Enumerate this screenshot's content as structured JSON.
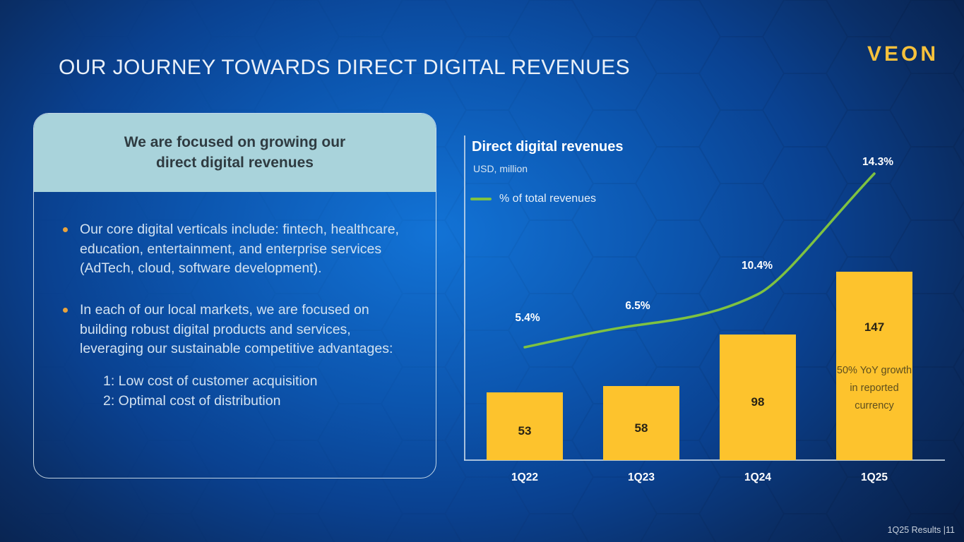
{
  "slide": {
    "title": "OUR JOURNEY TOWARDS DIRECT DIGITAL REVENUES",
    "logo_text": "VEON",
    "footer": "1Q25 Results |11"
  },
  "panel": {
    "header_line1": "We are focused on growing our",
    "header_line2": "direct digital revenues",
    "bullets": [
      "Our core digital verticals include: fintech, healthcare, education, entertainment, and enterprise services (AdTech, cloud, software development).",
      "In each of our local markets, we are focused on building robust digital products and services, leveraging our sustainable competitive advantages:"
    ],
    "sub_points": [
      "1: Low cost of customer acquisition",
      "2: Optimal cost of distribution"
    ]
  },
  "chart_data": {
    "type": "bar",
    "title": "Direct digital revenues",
    "subtitle": "USD, million",
    "categories": [
      "1Q22",
      "1Q23",
      "1Q24",
      "1Q25"
    ],
    "series": [
      {
        "name": "Direct digital revenues",
        "type": "bar",
        "unit": "USD million",
        "values": [
          53,
          58,
          98,
          147
        ],
        "color": "#FDC32D"
      },
      {
        "name": "% of total revenues",
        "type": "line",
        "unit": "%",
        "values": [
          5.4,
          6.5,
          10.4,
          14.3
        ],
        "color": "#7FC241"
      }
    ],
    "legend": {
      "entries": [
        "% of total revenues"
      ],
      "position": "top-left",
      "swatch": "line"
    },
    "annotation_last_bar": "50% YoY growth in reported currency",
    "xlabel": "",
    "ylabel": "",
    "grid": false,
    "value_labels": "inside-bars"
  },
  "colors": {
    "bar_yellow": "#FDC32D",
    "line_green": "#7FC241",
    "logo_gold": "#F6C13C",
    "card_header_bg": "#A9D3DB",
    "background_bright": "#1273D6",
    "background_dark": "#071530"
  }
}
